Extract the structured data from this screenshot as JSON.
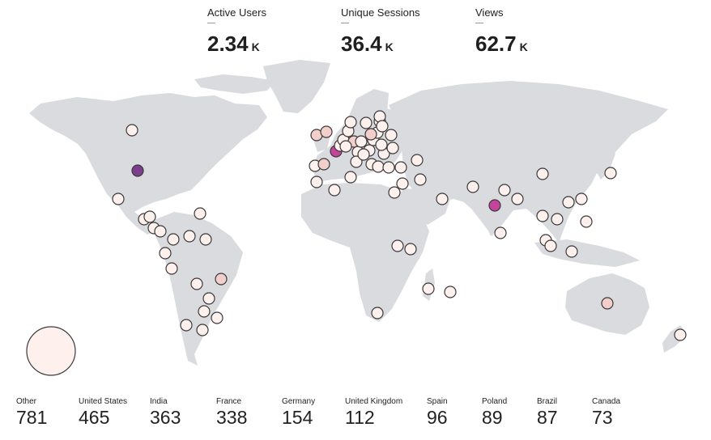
{
  "metrics": [
    {
      "label": "Active Users",
      "dash": "—",
      "value": "2.34",
      "unit": "K"
    },
    {
      "label": "Unique Sessions",
      "dash": "—",
      "value": "36.4",
      "unit": "K"
    },
    {
      "label": "Views",
      "dash": "—",
      "value": "62.7",
      "unit": "K"
    }
  ],
  "countries": [
    {
      "name": "Other",
      "value": "781"
    },
    {
      "name": "United States",
      "value": "465"
    },
    {
      "name": "India",
      "value": "363"
    },
    {
      "name": "France",
      "value": "338"
    },
    {
      "name": "Germany",
      "value": "154"
    },
    {
      "name": "United Kingdom",
      "value": "112"
    },
    {
      "name": "Spain",
      "value": "96"
    },
    {
      "name": "Poland",
      "value": "89"
    },
    {
      "name": "Brazil",
      "value": "87"
    },
    {
      "name": "Canada",
      "value": "73"
    }
  ],
  "colors": {
    "land": "#d9dbdf",
    "marker_low": "#fdf0ed",
    "marker_mid": "#f3cfcc",
    "marker_high": "#c4449c",
    "marker_top": "#7b3d8c",
    "marker_stroke": "#3a3a3a"
  }
}
